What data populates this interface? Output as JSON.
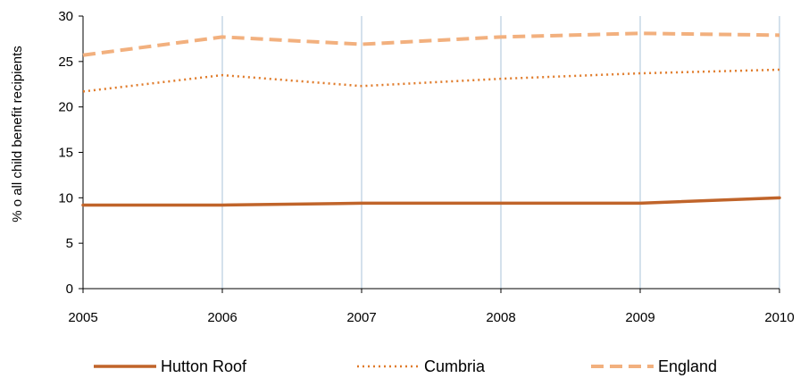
{
  "chart_data": {
    "type": "line",
    "x": [
      "2005",
      "2006",
      "2007",
      "2008",
      "2009",
      "2010"
    ],
    "ylabel": "% o all child benefit recipients",
    "ylim": [
      0,
      30
    ],
    "yticks": [
      "0",
      "5",
      "10",
      "15",
      "20",
      "25",
      "30"
    ],
    "grid": "vertical",
    "legend_position": "bottom",
    "series": [
      {
        "name": "Hutton Roof",
        "values": [
          9.2,
          9.2,
          9.4,
          9.4,
          9.4,
          10.0
        ],
        "color": "#c0642a",
        "style": "solid"
      },
      {
        "name": "Cumbria",
        "values": [
          21.7,
          23.5,
          22.3,
          23.1,
          23.7,
          24.1
        ],
        "color": "#e07b2a",
        "style": "dotted"
      },
      {
        "name": "England",
        "values": [
          25.7,
          27.7,
          26.9,
          27.7,
          28.1,
          27.9
        ],
        "color": "#f2b07e",
        "style": "dashed"
      }
    ],
    "colors": {
      "grid": "#b8cde0",
      "axis": "#000000"
    }
  }
}
